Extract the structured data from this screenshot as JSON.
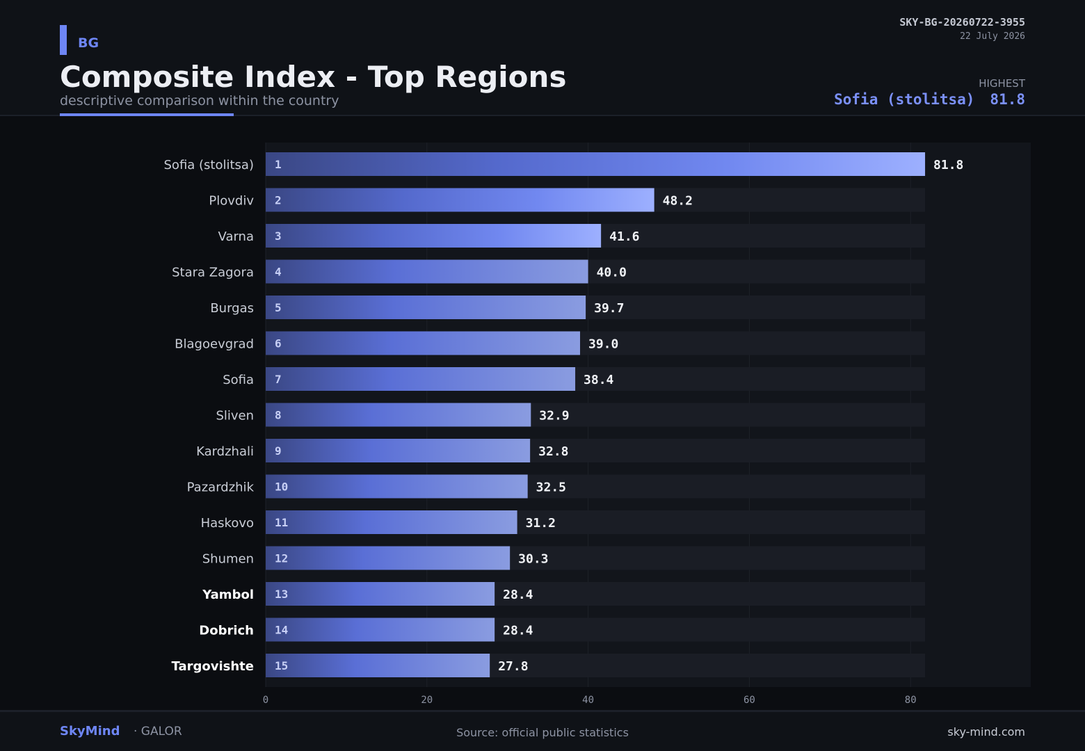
{
  "header": {
    "country": "BG",
    "title": "Composite Index - Top Regions",
    "subtitle": "descriptive comparison within the country",
    "report_id": "SKY-BG-20260722-3955",
    "date": "22 July 2026",
    "highest_label": "HIGHEST",
    "highest_region": "Sofia (stolitsa)",
    "highest_value": "81.8"
  },
  "colors": {
    "accent": "#6e86f5",
    "bar_start": "#3c4a8c",
    "bar_end": "#9db0ff",
    "track": "#1a1d25"
  },
  "chart_data": {
    "type": "bar",
    "orientation": "horizontal",
    "title": "Composite Index - Top Regions",
    "subtitle": "descriptive comparison within the country",
    "categories": [
      "Sofia (stolitsa)",
      "Plovdiv",
      "Varna",
      "Stara Zagora",
      "Burgas",
      "Blagoevgrad",
      "Sofia",
      "Sliven",
      "Kardzhali",
      "Pazardzhik",
      "Haskovo",
      "Shumen",
      "Yambol",
      "Dobrich",
      "Targovishte"
    ],
    "ranks": [
      "1",
      "2",
      "3",
      "4",
      "5",
      "6",
      "7",
      "8",
      "9",
      "10",
      "11",
      "12",
      "13",
      "14",
      "15"
    ],
    "values": [
      81.8,
      48.2,
      41.6,
      40.0,
      39.7,
      39.0,
      38.4,
      32.9,
      32.8,
      32.5,
      31.2,
      30.3,
      28.4,
      28.4,
      27.8
    ],
    "value_labels": [
      "81.8",
      "48.2",
      "41.6",
      "40.0",
      "39.7",
      "39.0",
      "38.4",
      "32.9",
      "32.8",
      "32.5",
      "31.2",
      "30.3",
      "28.4",
      "28.4",
      "27.8"
    ],
    "bold_categories": [
      "Yambol",
      "Dobrich",
      "Targovishte"
    ],
    "xlim": [
      0,
      95
    ],
    "xticks": [
      0,
      20,
      40,
      60,
      80
    ],
    "grid": true,
    "legend": "none"
  },
  "footer": {
    "brand": "SkyMind",
    "brand_sub": "· GALOR",
    "source": "Source: official public statistics",
    "site": "sky-mind.com"
  }
}
